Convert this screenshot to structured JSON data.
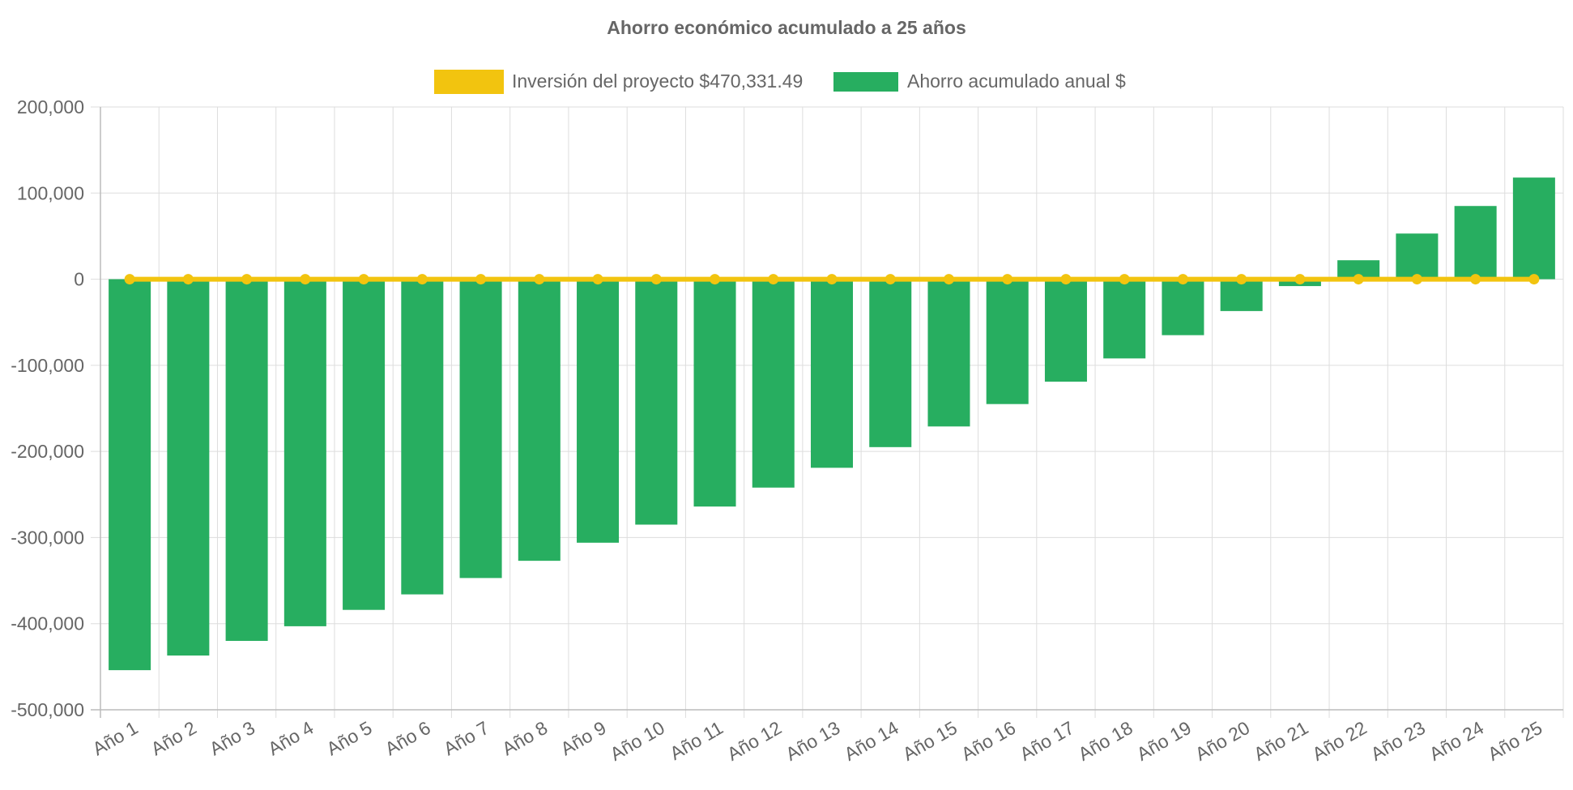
{
  "chart_data": {
    "type": "bar",
    "title": "Ahorro económico acumulado a 25 años",
    "xlabel": "",
    "ylabel": "",
    "categories": [
      "Año 1",
      "Año 2",
      "Año 3",
      "Año 4",
      "Año 5",
      "Año 6",
      "Año 7",
      "Año 8",
      "Año 9",
      "Año 10",
      "Año 11",
      "Año 12",
      "Año 13",
      "Año 14",
      "Año 15",
      "Año 16",
      "Año 17",
      "Año 18",
      "Año 19",
      "Año 20",
      "Año 21",
      "Año 22",
      "Año 23",
      "Año 24",
      "Año 25"
    ],
    "ylim": [
      -500000,
      200000
    ],
    "yticks": [
      200000,
      100000,
      0,
      -100000,
      -200000,
      -300000,
      -400000,
      -500000
    ],
    "ytick_labels": [
      "200,000",
      "100,000",
      "0",
      "-100,000",
      "-200,000",
      "-300,000",
      "-400,000",
      "-500,000"
    ],
    "grid": true,
    "legend_position": "top-center",
    "series": [
      {
        "name": "Inversión del proyecto $470,331.49",
        "type": "line",
        "color": "#F2C40F",
        "values": [
          0,
          0,
          0,
          0,
          0,
          0,
          0,
          0,
          0,
          0,
          0,
          0,
          0,
          0,
          0,
          0,
          0,
          0,
          0,
          0,
          0,
          0,
          0,
          0,
          0
        ]
      },
      {
        "name": "Ahorro acumulado anual $",
        "type": "bar",
        "color": "#27AE60",
        "values": [
          -454000,
          -437000,
          -420000,
          -403000,
          -384000,
          -366000,
          -347000,
          -327000,
          -306000,
          -285000,
          -264000,
          -242000,
          -219000,
          -195000,
          -171000,
          -145000,
          -119000,
          -92000,
          -65000,
          -37000,
          -8000,
          22000,
          53000,
          85000,
          118000
        ]
      }
    ]
  }
}
